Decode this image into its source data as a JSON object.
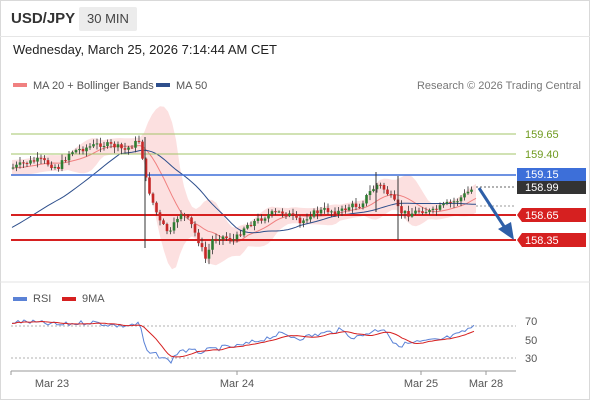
{
  "header": {
    "symbol": "USD/JPY",
    "timeframe": "30 MIN"
  },
  "datetime": "Wednesday, March 25, 2026 7:14:44 AM CET",
  "legend": {
    "ma20": {
      "label": "MA 20 + Bollinger Bands",
      "color": "#f08080"
    },
    "ma50": {
      "label": "MA 50",
      "color": "#2e4f8c"
    }
  },
  "credit": "Research © 2026 Trading Central",
  "levels": [
    {
      "value": "159.65",
      "type": "resistance-green"
    },
    {
      "value": "159.40",
      "type": "resistance-green"
    },
    {
      "value": "159.15",
      "type": "pivot-blue"
    },
    {
      "value": "158.99",
      "type": "last-price"
    },
    {
      "value": "158.65",
      "type": "support-red"
    },
    {
      "value": "158.35",
      "type": "support-red"
    }
  ],
  "rsi_legend": {
    "rsi": {
      "label": "RSI",
      "color": "#5b82d6"
    },
    "ma9": {
      "label": "9MA",
      "color": "#d62020"
    }
  },
  "rsi_ticks": [
    "70",
    "50",
    "30"
  ],
  "x_labels": [
    "Mar 23",
    "Mar 24",
    "Mar 25",
    "Mar 28"
  ],
  "colors": {
    "up": "#2e7d32",
    "down": "#c62828",
    "arrow": "#2e5fa8"
  }
}
